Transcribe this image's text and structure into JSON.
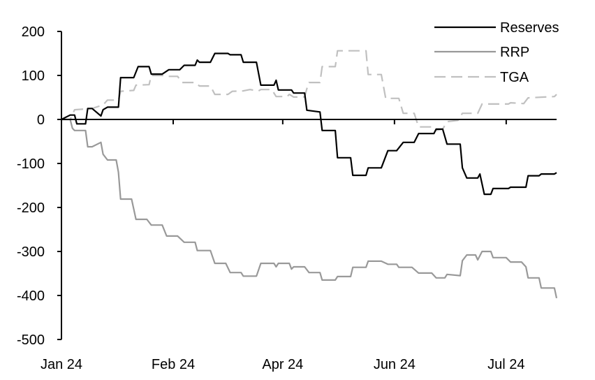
{
  "chart_data": {
    "type": "line",
    "title": "",
    "xlabel": "",
    "ylabel": "",
    "ylim": [
      -500,
      200
    ],
    "yticks": [
      200,
      100,
      0,
      -100,
      -200,
      -300,
      -400,
      -500
    ],
    "xlim": [
      "2024-01-01",
      "2024-08-14"
    ],
    "xticks": [
      {
        "date": "2024-01-01",
        "label": "Jan 24"
      },
      {
        "date": "2024-02-21",
        "label": "Feb 24"
      },
      {
        "date": "2024-04-11",
        "label": "Apr 24"
      },
      {
        "date": "2024-06-01",
        "label": "Jun 24"
      },
      {
        "date": "2024-07-22",
        "label": "Jul 24"
      }
    ],
    "grid": false,
    "legend": "top-right",
    "series": [
      {
        "name": "Reserves",
        "color": "#000000",
        "dash": "solid",
        "points": [
          [
            "2024-01-01",
            0
          ],
          [
            "2024-01-05",
            10
          ],
          [
            "2024-01-07",
            10
          ],
          [
            "2024-01-08",
            -10
          ],
          [
            "2024-01-12",
            -10
          ],
          [
            "2024-01-13",
            25
          ],
          [
            "2024-01-15",
            25
          ],
          [
            "2024-01-19",
            8
          ],
          [
            "2024-01-20",
            22
          ],
          [
            "2024-01-22",
            28
          ],
          [
            "2024-01-27",
            28
          ],
          [
            "2024-01-28",
            95
          ],
          [
            "2024-02-03",
            95
          ],
          [
            "2024-02-05",
            120
          ],
          [
            "2024-02-10",
            120
          ],
          [
            "2024-02-11",
            103
          ],
          [
            "2024-02-16",
            103
          ],
          [
            "2024-02-19",
            113
          ],
          [
            "2024-02-24",
            113
          ],
          [
            "2024-02-26",
            123
          ],
          [
            "2024-03-02",
            123
          ],
          [
            "2024-03-03",
            135
          ],
          [
            "2024-03-04",
            130
          ],
          [
            "2024-03-09",
            130
          ],
          [
            "2024-03-11",
            150
          ],
          [
            "2024-03-17",
            150
          ],
          [
            "2024-03-18",
            147
          ],
          [
            "2024-03-23",
            147
          ],
          [
            "2024-03-24",
            130
          ],
          [
            "2024-03-30",
            130
          ],
          [
            "2024-04-01",
            78
          ],
          [
            "2024-04-07",
            78
          ],
          [
            "2024-04-08",
            89
          ],
          [
            "2024-04-09",
            67
          ],
          [
            "2024-04-15",
            67
          ],
          [
            "2024-04-16",
            60
          ],
          [
            "2024-04-21",
            60
          ],
          [
            "2024-04-22",
            21
          ],
          [
            "2024-04-28",
            17
          ],
          [
            "2024-04-29",
            -25
          ],
          [
            "2024-05-05",
            -25
          ],
          [
            "2024-05-06",
            -87
          ],
          [
            "2024-05-12",
            -87
          ],
          [
            "2024-05-13",
            -127
          ],
          [
            "2024-05-19",
            -127
          ],
          [
            "2024-05-20",
            -110
          ],
          [
            "2024-05-26",
            -110
          ],
          [
            "2024-05-29",
            -71
          ],
          [
            "2024-06-02",
            -71
          ],
          [
            "2024-06-05",
            -52
          ],
          [
            "2024-06-10",
            -52
          ],
          [
            "2024-06-12",
            -32
          ],
          [
            "2024-06-19",
            -32
          ],
          [
            "2024-06-20",
            -22
          ],
          [
            "2024-06-23",
            -22
          ],
          [
            "2024-06-25",
            -56
          ],
          [
            "2024-07-01",
            -56
          ],
          [
            "2024-07-02",
            -110
          ],
          [
            "2024-07-04",
            -133
          ],
          [
            "2024-07-09",
            -133
          ],
          [
            "2024-07-10",
            -124
          ],
          [
            "2024-07-12",
            -170
          ],
          [
            "2024-07-15",
            -170
          ],
          [
            "2024-07-16",
            -157
          ],
          [
            "2024-07-23",
            -157
          ],
          [
            "2024-07-24",
            -154
          ],
          [
            "2024-07-31",
            -154
          ],
          [
            "2024-08-01",
            -128
          ],
          [
            "2024-08-06",
            -128
          ],
          [
            "2024-08-07",
            -124
          ],
          [
            "2024-08-13",
            -124
          ],
          [
            "2024-08-14",
            -121
          ]
        ]
      },
      {
        "name": "RRP",
        "color": "#999999",
        "dash": "solid",
        "points": [
          [
            "2024-01-01",
            0
          ],
          [
            "2024-01-05",
            0
          ],
          [
            "2024-01-06",
            -20
          ],
          [
            "2024-01-07",
            -25
          ],
          [
            "2024-01-12",
            -25
          ],
          [
            "2024-01-13",
            -62
          ],
          [
            "2024-01-15",
            -62
          ],
          [
            "2024-01-19",
            -52
          ],
          [
            "2024-01-20",
            -79
          ],
          [
            "2024-01-22",
            -92
          ],
          [
            "2024-01-26",
            -92
          ],
          [
            "2024-01-27",
            -120
          ],
          [
            "2024-01-28",
            -181
          ],
          [
            "2024-02-02",
            -181
          ],
          [
            "2024-02-04",
            -227
          ],
          [
            "2024-02-09",
            -227
          ],
          [
            "2024-02-11",
            -240
          ],
          [
            "2024-02-16",
            -240
          ],
          [
            "2024-02-18",
            -265
          ],
          [
            "2024-02-23",
            -265
          ],
          [
            "2024-02-26",
            -279
          ],
          [
            "2024-03-02",
            -279
          ],
          [
            "2024-03-03",
            -298
          ],
          [
            "2024-03-09",
            -298
          ],
          [
            "2024-03-11",
            -327
          ],
          [
            "2024-03-16",
            -327
          ],
          [
            "2024-03-18",
            -348
          ],
          [
            "2024-03-23",
            -348
          ],
          [
            "2024-03-24",
            -356
          ],
          [
            "2024-03-30",
            -356
          ],
          [
            "2024-04-01",
            -327
          ],
          [
            "2024-04-07",
            -327
          ],
          [
            "2024-04-08",
            -335
          ],
          [
            "2024-04-09",
            -327
          ],
          [
            "2024-04-14",
            -327
          ],
          [
            "2024-04-15",
            -340
          ],
          [
            "2024-04-16",
            -335
          ],
          [
            "2024-04-21",
            -335
          ],
          [
            "2024-04-23",
            -348
          ],
          [
            "2024-04-28",
            -348
          ],
          [
            "2024-04-29",
            -365
          ],
          [
            "2024-05-05",
            -365
          ],
          [
            "2024-05-06",
            -357
          ],
          [
            "2024-05-12",
            -357
          ],
          [
            "2024-05-13",
            -336
          ],
          [
            "2024-05-19",
            -336
          ],
          [
            "2024-05-20",
            -322
          ],
          [
            "2024-05-26",
            -322
          ],
          [
            "2024-05-29",
            -329
          ],
          [
            "2024-06-02",
            -329
          ],
          [
            "2024-06-03",
            -336
          ],
          [
            "2024-06-09",
            -336
          ],
          [
            "2024-06-12",
            -349
          ],
          [
            "2024-06-18",
            -349
          ],
          [
            "2024-06-20",
            -360
          ],
          [
            "2024-06-24",
            -360
          ],
          [
            "2024-06-25",
            -352
          ],
          [
            "2024-07-01",
            -355
          ],
          [
            "2024-07-02",
            -321
          ],
          [
            "2024-07-04",
            -308
          ],
          [
            "2024-07-08",
            -308
          ],
          [
            "2024-07-09",
            -319
          ],
          [
            "2024-07-11",
            -300
          ],
          [
            "2024-07-15",
            -300
          ],
          [
            "2024-07-16",
            -314
          ],
          [
            "2024-07-22",
            -314
          ],
          [
            "2024-07-24",
            -324
          ],
          [
            "2024-07-29",
            -324
          ],
          [
            "2024-07-31",
            -335
          ],
          [
            "2024-08-01",
            -360
          ],
          [
            "2024-08-06",
            -360
          ],
          [
            "2024-08-07",
            -383
          ],
          [
            "2024-08-13",
            -383
          ],
          [
            "2024-08-14",
            -406
          ]
        ]
      },
      {
        "name": "TGA",
        "color": "#c0c0c0",
        "dash": "dashed",
        "points": [
          [
            "2024-01-01",
            0
          ],
          [
            "2024-01-05",
            0
          ],
          [
            "2024-01-07",
            22
          ],
          [
            "2024-01-15",
            25
          ],
          [
            "2024-01-20",
            33
          ],
          [
            "2024-01-22",
            44
          ],
          [
            "2024-01-27",
            44
          ],
          [
            "2024-01-28",
            64
          ],
          [
            "2024-02-03",
            66
          ],
          [
            "2024-02-04",
            78
          ],
          [
            "2024-02-10",
            79
          ],
          [
            "2024-02-11",
            100
          ],
          [
            "2024-02-16",
            100
          ],
          [
            "2024-02-18",
            98
          ],
          [
            "2024-02-23",
            98
          ],
          [
            "2024-02-25",
            84
          ],
          [
            "2024-03-02",
            84
          ],
          [
            "2024-03-04",
            76
          ],
          [
            "2024-03-09",
            76
          ],
          [
            "2024-03-11",
            57
          ],
          [
            "2024-03-17",
            57
          ],
          [
            "2024-03-19",
            64
          ],
          [
            "2024-03-24",
            65
          ],
          [
            "2024-03-27",
            68
          ],
          [
            "2024-03-31",
            65
          ],
          [
            "2024-04-01",
            68
          ],
          [
            "2024-04-06",
            68
          ],
          [
            "2024-04-08",
            52
          ],
          [
            "2024-04-13",
            52
          ],
          [
            "2024-04-14",
            57
          ],
          [
            "2024-04-16",
            51
          ],
          [
            "2024-04-21",
            51
          ],
          [
            "2024-04-22",
            70
          ],
          [
            "2024-04-23",
            84
          ],
          [
            "2024-04-28",
            84
          ],
          [
            "2024-04-29",
            120
          ],
          [
            "2024-05-05",
            120
          ],
          [
            "2024-05-06",
            156
          ],
          [
            "2024-05-19",
            156
          ],
          [
            "2024-05-20",
            102
          ],
          [
            "2024-05-26",
            102
          ],
          [
            "2024-05-28",
            48
          ],
          [
            "2024-06-03",
            48
          ],
          [
            "2024-06-05",
            14
          ],
          [
            "2024-06-10",
            14
          ],
          [
            "2024-06-12",
            -17
          ],
          [
            "2024-06-18",
            -17
          ],
          [
            "2024-06-20",
            -25
          ],
          [
            "2024-06-23",
            -22
          ],
          [
            "2024-06-25",
            -5
          ],
          [
            "2024-06-30",
            -2
          ],
          [
            "2024-07-02",
            14
          ],
          [
            "2024-07-09",
            14
          ],
          [
            "2024-07-11",
            35
          ],
          [
            "2024-07-23",
            35
          ],
          [
            "2024-07-24",
            38
          ],
          [
            "2024-07-30",
            36
          ],
          [
            "2024-08-01",
            49
          ],
          [
            "2024-08-13",
            52
          ],
          [
            "2024-08-14",
            57
          ]
        ]
      }
    ]
  }
}
